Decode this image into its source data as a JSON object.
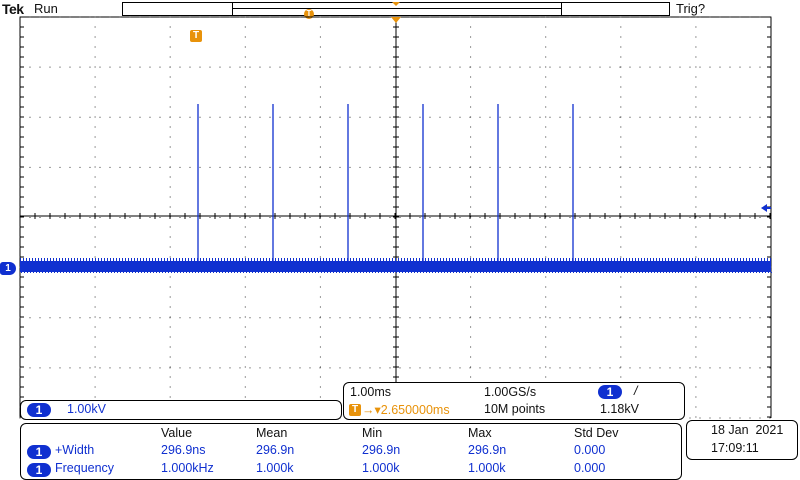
{
  "header": {
    "brand": "Tek",
    "acq_state": "Run",
    "trigger_state": "Trig?"
  },
  "display": {
    "channel_marker": "1",
    "trigger_marker": "T",
    "trace_color": "#1030d0",
    "trigger_color": "#e8920a"
  },
  "channel_panel": {
    "channel": "1",
    "scale": "1.00kV"
  },
  "acq_panel": {
    "timebase": "1.00ms",
    "sample_rate": "1.00GS/s",
    "trigger_channel": "1",
    "trigger_slope": "/",
    "trigger_icon": "T",
    "trigger_position": "→▾2.650000ms",
    "record_length": "10M points",
    "trigger_level": "1.18kV"
  },
  "measurements": {
    "headers": [
      "Value",
      "Mean",
      "Min",
      "Max",
      "Std Dev"
    ],
    "rows": [
      {
        "channel": "1",
        "name": "+Width",
        "value": "296.9ns",
        "mean": "296.9n",
        "min": "296.9n",
        "max": "296.9n",
        "std_dev": "0.000"
      },
      {
        "channel": "1",
        "name": "Frequency",
        "value": "1.000kHz",
        "mean": "1.000k",
        "min": "1.000k",
        "max": "1.000k",
        "std_dev": "0.000"
      }
    ]
  },
  "datetime": {
    "date": "18 Jan  2021",
    "time": "17:09:11"
  }
}
